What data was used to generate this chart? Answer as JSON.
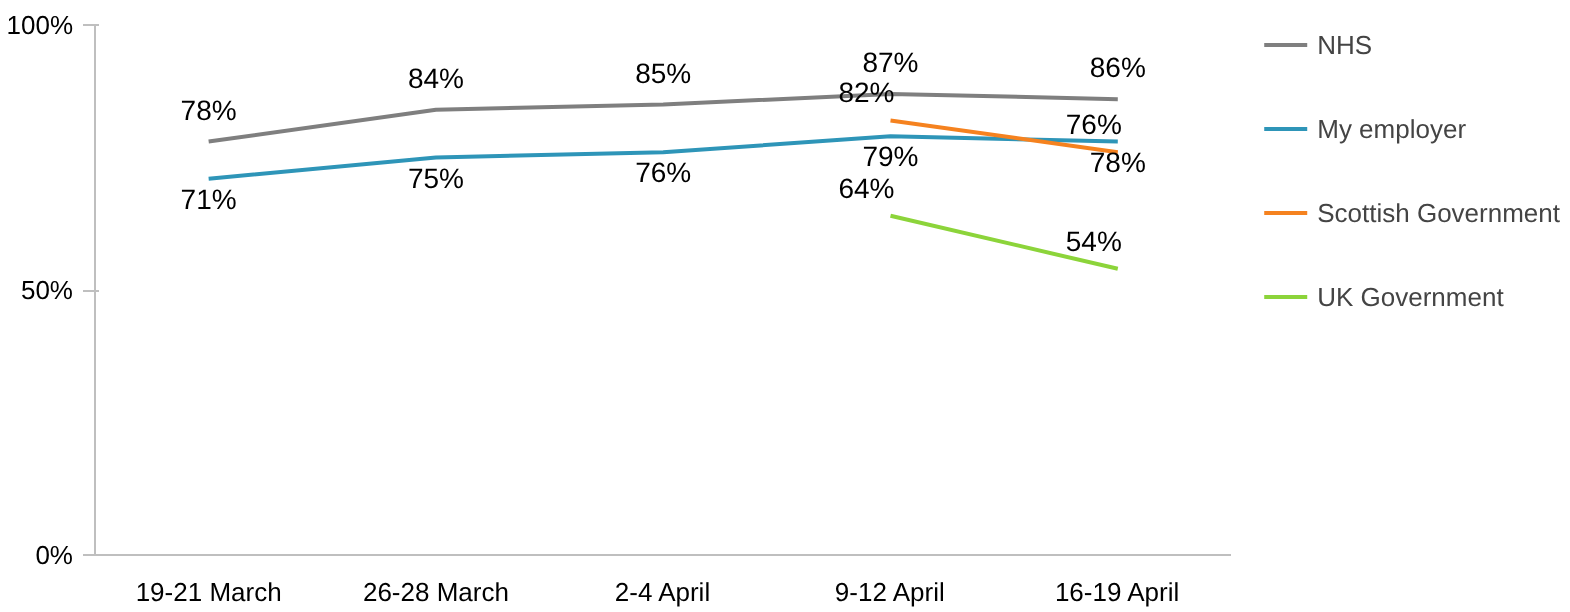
{
  "chart_data": {
    "type": "line",
    "categories": [
      "19-21 March",
      "26-28 March",
      "2-4 April",
      "9-12 April",
      "16-19 April"
    ],
    "series": [
      {
        "name": "NHS",
        "color": "#7f7f7f",
        "values": [
          78,
          84,
          85,
          87,
          86
        ],
        "value_labels": [
          "78%",
          "84%",
          "85%",
          "87%",
          "86%"
        ]
      },
      {
        "name": "My employer",
        "color": "#2e95b8",
        "values": [
          71,
          75,
          76,
          79,
          78
        ],
        "value_labels": [
          "71%",
          "75%",
          "76%",
          "79%",
          "78%"
        ]
      },
      {
        "name": "Scottish Government",
        "color": "#f5821f",
        "values": [
          null,
          null,
          null,
          82,
          76
        ],
        "value_labels": [
          null,
          null,
          null,
          "82%",
          "76%"
        ]
      },
      {
        "name": "UK Government",
        "color": "#8cd43a",
        "values": [
          null,
          null,
          null,
          64,
          54
        ],
        "value_labels": [
          null,
          null,
          null,
          "64%",
          "54%"
        ]
      }
    ],
    "ylim": [
      0,
      100
    ],
    "yticks": [
      {
        "value": 0,
        "label": "0%"
      },
      {
        "value": 50,
        "label": "50%"
      },
      {
        "value": 100,
        "label": "100%"
      }
    ],
    "grid": false,
    "legend": "right",
    "marker": "none",
    "line_style": "solid"
  }
}
